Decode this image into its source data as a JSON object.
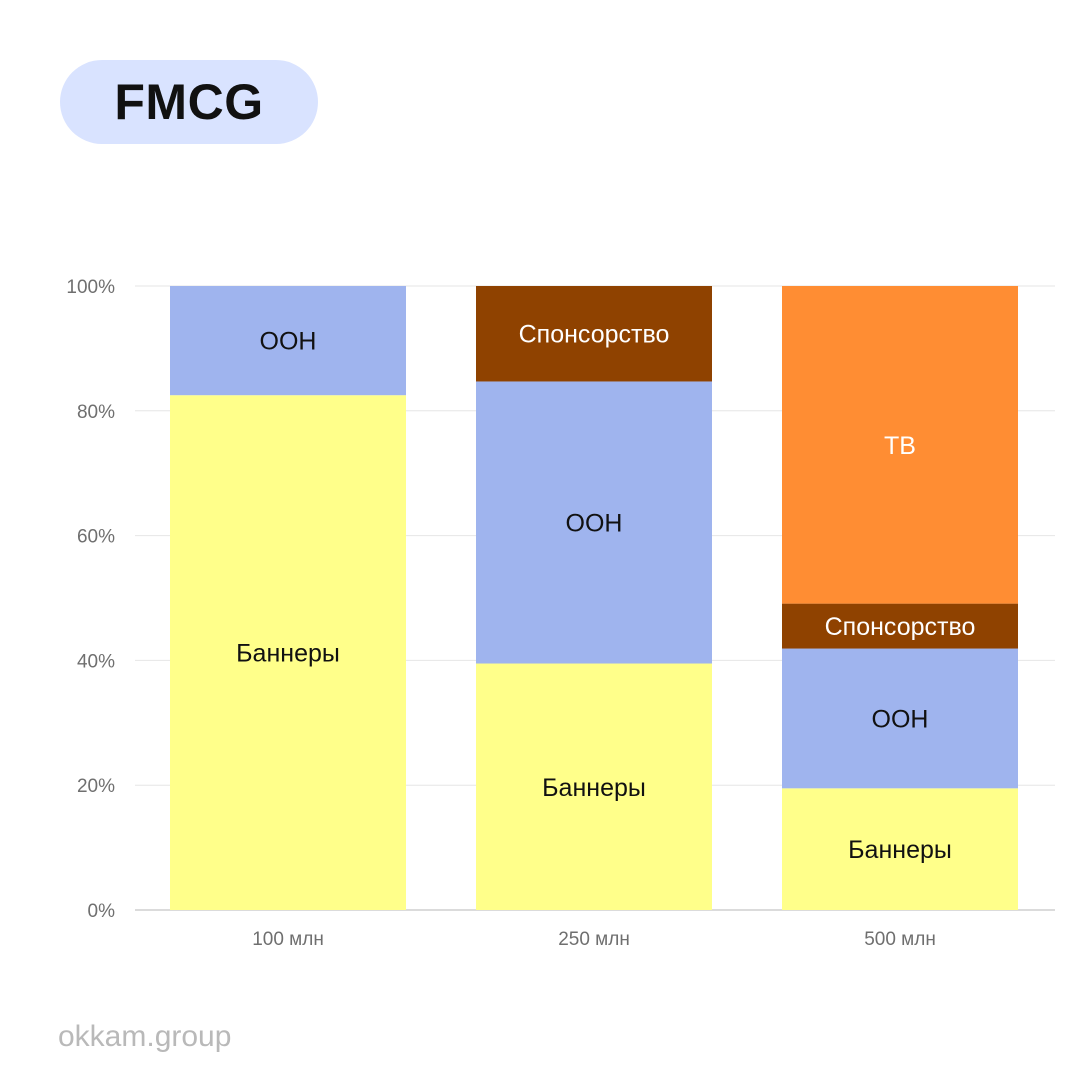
{
  "title": "FMCG",
  "footer": "okkam.group",
  "colors": {
    "banners": "#ffff8a",
    "ooh": "#9fb4ee",
    "sponsorship": "#8f4200",
    "tv": "#ff8d33",
    "grid": "#e6e6e6",
    "pill": "#d9e3ff"
  },
  "chart_data": {
    "type": "bar",
    "stacked": true,
    "categories": [
      "100 млн",
      "250 млн",
      "500 млн"
    ],
    "series": [
      {
        "name": "Баннеры",
        "color": "#ffff8a",
        "label_color": "#111111",
        "values": [
          82.5,
          39.5,
          19.5
        ]
      },
      {
        "name": "ООН",
        "color": "#9fb4ee",
        "label_color": "#111111",
        "values": [
          17.5,
          45.2,
          22.4
        ]
      },
      {
        "name": "Спонсорство",
        "color": "#8f4200",
        "label_color": "#ffffff",
        "values": [
          0,
          15.3,
          7.2
        ]
      },
      {
        "name": "ТВ",
        "color": "#ff8d33",
        "label_color": "#ffffff",
        "values": [
          0,
          0,
          50.9
        ]
      }
    ],
    "yticks": [
      "0%",
      "20%",
      "40%",
      "60%",
      "80%",
      "100%"
    ],
    "ylim": [
      0,
      100
    ],
    "grid": true,
    "legend": "none"
  }
}
